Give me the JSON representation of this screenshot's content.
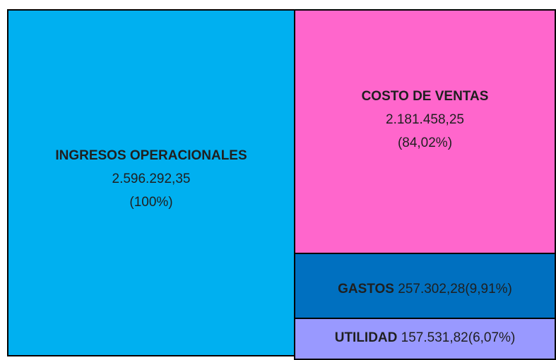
{
  "blocks": [
    {
      "label": "INGRESOS OPERACIONALES",
      "amount": "2.596.292,35",
      "share": "(100%)"
    },
    {
      "label": "COSTO DE VENTAS",
      "amount": "2.181.458,25",
      "share": "(84,02%)"
    },
    {
      "label": "GASTOS",
      "amount": "257.302,28",
      "share": "(9,91%)"
    },
    {
      "label": "UTILIDAD",
      "amount": "157.531,82",
      "share": "(6,07%)"
    }
  ]
}
